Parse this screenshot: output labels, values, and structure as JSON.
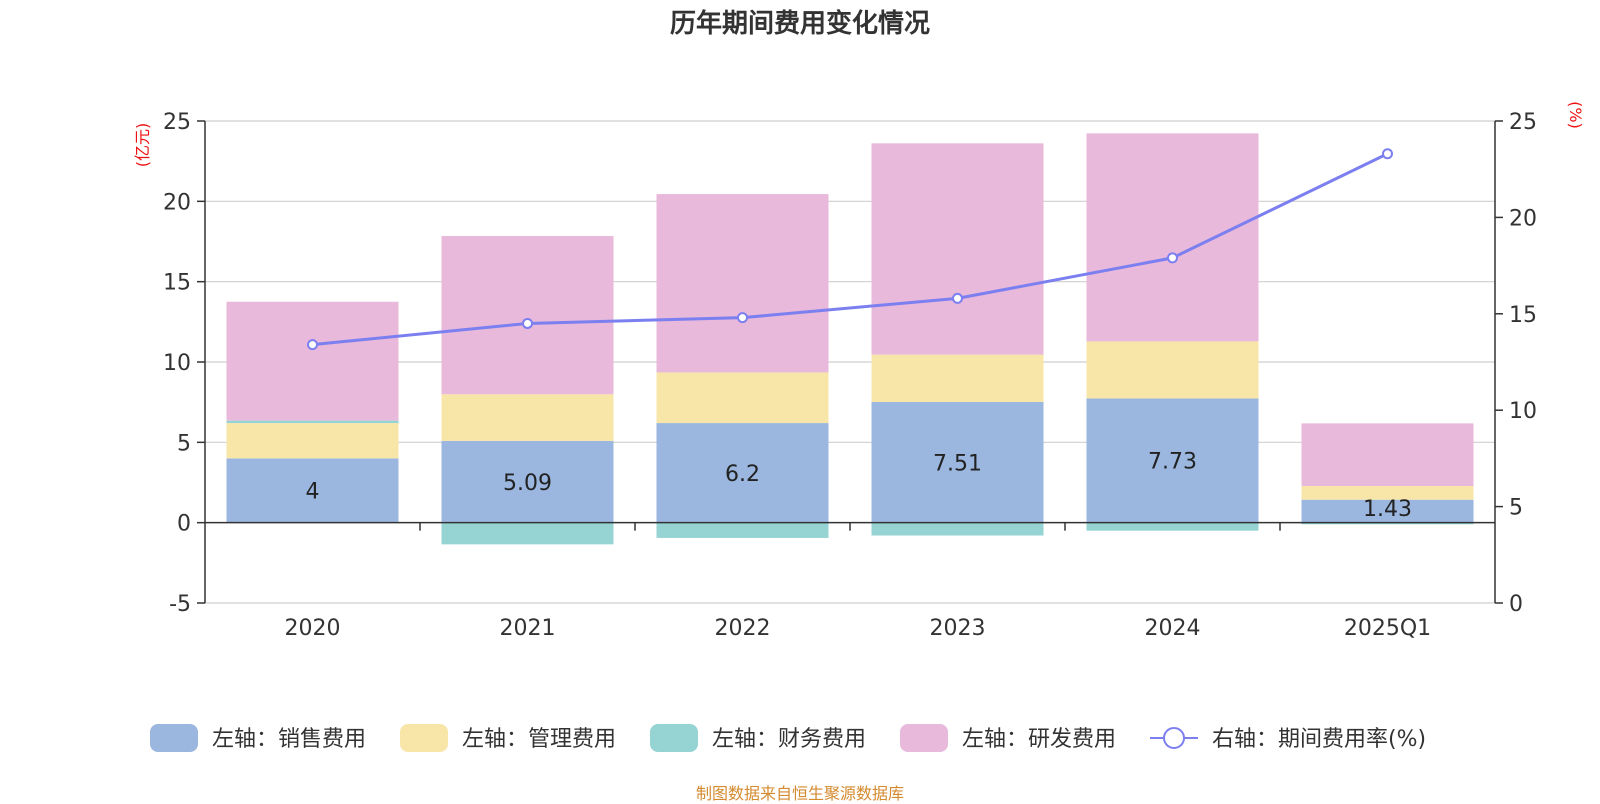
{
  "chart_data": {
    "type": "bar",
    "stacked": true,
    "title": "历年期间费用变化情况",
    "categories": [
      "2020",
      "2021",
      "2022",
      "2023",
      "2024",
      "2025Q1"
    ],
    "left_axis": {
      "unit": "(亿元)",
      "ylim": [
        -5,
        25
      ],
      "ticks": [
        25,
        20,
        15,
        10,
        5,
        0,
        -5
      ]
    },
    "right_axis": {
      "unit": "(%)",
      "ylim": [
        0,
        25
      ],
      "ticks": [
        25,
        20,
        15,
        10,
        5,
        0
      ]
    },
    "series": [
      {
        "name": "左轴：销售费用",
        "axis": "left",
        "color": "#9bb7e0",
        "values": [
          4.0,
          5.09,
          6.2,
          7.51,
          7.73,
          1.43
        ],
        "labels": [
          "4",
          "5.09",
          "6.2",
          "7.51",
          "7.73",
          "1.43"
        ]
      },
      {
        "name": "左轴：管理费用",
        "axis": "left",
        "color": "#f8e6a8",
        "values": [
          2.2,
          2.9,
          3.15,
          2.95,
          3.55,
          0.85
        ]
      },
      {
        "name": "左轴：财务费用",
        "axis": "left",
        "color": "#96d4d4",
        "values": [
          0.15,
          -1.35,
          -0.95,
          -0.8,
          -0.5,
          -0.1
        ]
      },
      {
        "name": "左轴：研发费用",
        "axis": "left",
        "color": "#e8b9da",
        "values": [
          7.4,
          9.85,
          11.1,
          13.15,
          12.95,
          3.9
        ]
      },
      {
        "name": "右轴：期间费用率(%)",
        "axis": "right",
        "type": "line",
        "color": "#7b7ff0",
        "values": [
          13.4,
          14.5,
          14.8,
          15.8,
          17.9,
          23.3
        ]
      }
    ],
    "legend_position": "bottom"
  },
  "footer": {
    "source": "制图数据来自恒生聚源数据库"
  }
}
